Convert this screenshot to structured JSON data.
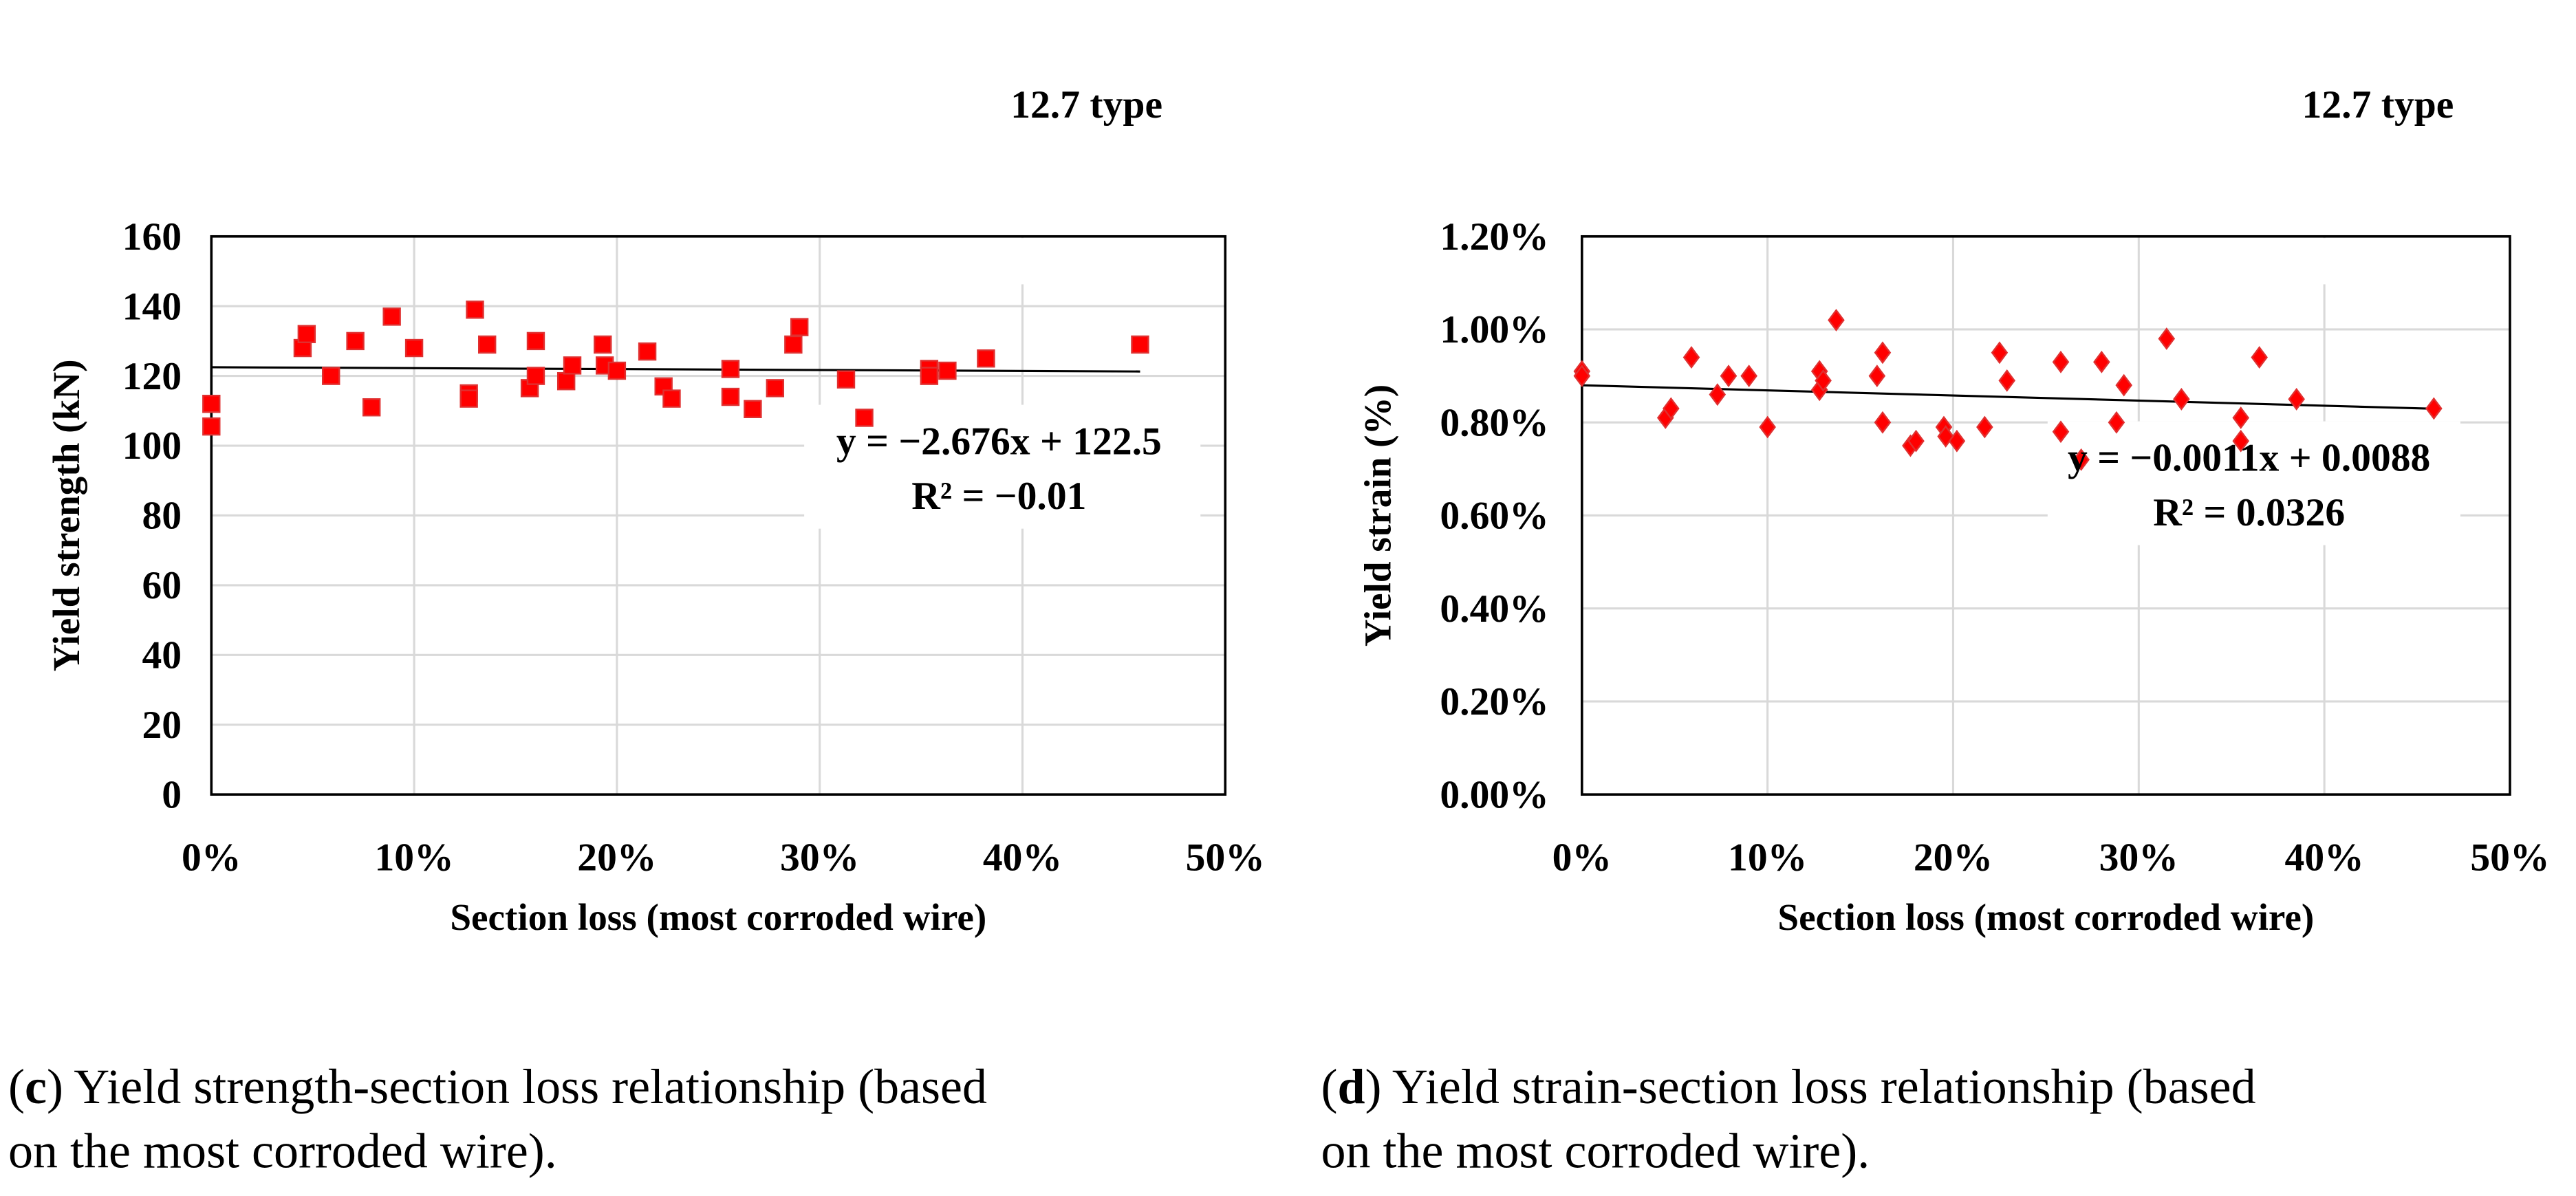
{
  "chart_data": [
    {
      "type": "scatter",
      "id": "c",
      "annotation": "12.7 type",
      "xlabel": "Section loss (most corroded wire)",
      "ylabel": "Yield strength (kN)",
      "xlim": [
        0,
        50
      ],
      "ylim": [
        0,
        160
      ],
      "xticks": [
        "0%",
        "10%",
        "20%",
        "30%",
        "40%",
        "50%"
      ],
      "yticks": [
        "0",
        "20",
        "40",
        "60",
        "80",
        "100",
        "120",
        "140",
        "160"
      ],
      "grid": true,
      "marker": "square",
      "color": "#ff0000",
      "equation": "y = −2.676x + 122.5",
      "r2": "R² = −0.01",
      "trend": {
        "slope": -2.676,
        "intercept": 122.5,
        "x_range": [
          0,
          45.8
        ]
      },
      "x_unit": "percent",
      "points": [
        [
          0,
          112
        ],
        [
          0,
          105.5
        ],
        [
          4.5,
          128
        ],
        [
          4.7,
          132
        ],
        [
          5.9,
          120
        ],
        [
          7.1,
          130
        ],
        [
          7.9,
          111
        ],
        [
          8.9,
          137
        ],
        [
          10,
          128
        ],
        [
          12.7,
          115
        ],
        [
          12.7,
          113.5
        ],
        [
          13,
          139
        ],
        [
          13.6,
          129
        ],
        [
          15.7,
          116.5
        ],
        [
          16,
          120
        ],
        [
          16,
          130
        ],
        [
          17.5,
          118.5
        ],
        [
          17.8,
          123
        ],
        [
          19.3,
          129
        ],
        [
          19.4,
          123
        ],
        [
          20,
          121.5
        ],
        [
          21.5,
          127
        ],
        [
          22.3,
          117
        ],
        [
          22.7,
          113.5
        ],
        [
          25.6,
          114
        ],
        [
          25.6,
          122
        ],
        [
          26.7,
          110.5
        ],
        [
          27.8,
          116.5
        ],
        [
          28.7,
          129
        ],
        [
          29,
          134
        ],
        [
          31.3,
          119
        ],
        [
          32.2,
          108
        ],
        [
          35.4,
          122
        ],
        [
          35.4,
          120
        ],
        [
          36.3,
          121.5
        ],
        [
          38.2,
          125
        ],
        [
          45.8,
          129
        ]
      ],
      "caption_label": "c",
      "caption_line1": ") Yield strength-section loss relationship (based",
      "caption_line2": "on the most corroded wire)."
    },
    {
      "type": "scatter",
      "id": "d",
      "annotation": "12.7 type",
      "xlabel": "Section loss (most corroded wire)",
      "ylabel": "Yield strain (%)",
      "xlim": [
        0,
        50
      ],
      "ylim": [
        0,
        1.2
      ],
      "xticks": [
        "0%",
        "10%",
        "20%",
        "30%",
        "40%",
        "50%"
      ],
      "yticks": [
        "0.00%",
        "0.20%",
        "0.40%",
        "0.60%",
        "0.80%",
        "1.00%",
        "1.20%"
      ],
      "grid": true,
      "marker": "diamond",
      "color": "#ff0000",
      "equation": "y = −0.0011x + 0.0088",
      "r2": "R² = 0.0326",
      "trend": {
        "slope": -0.11,
        "intercept": 0.88,
        "x_range": [
          0,
          45.9
        ]
      },
      "x_unit": "percent",
      "points": [
        [
          0,
          0.91
        ],
        [
          0,
          0.9
        ],
        [
          4.5,
          0.81
        ],
        [
          4.8,
          0.83
        ],
        [
          5.9,
          0.94
        ],
        [
          7.3,
          0.86
        ],
        [
          7.9,
          0.9
        ],
        [
          9,
          0.9
        ],
        [
          10,
          0.79
        ],
        [
          12.8,
          0.91
        ],
        [
          12.8,
          0.87
        ],
        [
          13,
          0.89
        ],
        [
          13.7,
          1.02
        ],
        [
          15.9,
          0.9
        ],
        [
          16.2,
          0.95
        ],
        [
          16.2,
          0.8
        ],
        [
          17.7,
          0.75
        ],
        [
          18,
          0.76
        ],
        [
          19.5,
          0.79
        ],
        [
          19.6,
          0.77
        ],
        [
          20.2,
          0.76
        ],
        [
          21.7,
          0.79
        ],
        [
          22.5,
          0.95
        ],
        [
          22.9,
          0.89
        ],
        [
          25.8,
          0.93
        ],
        [
          25.8,
          0.78
        ],
        [
          26.9,
          0.72
        ],
        [
          28,
          0.93
        ],
        [
          28.8,
          0.8
        ],
        [
          29.2,
          0.88
        ],
        [
          31.5,
          0.98
        ],
        [
          32.3,
          0.85
        ],
        [
          35.5,
          0.81
        ],
        [
          35.5,
          0.76
        ],
        [
          36.5,
          0.94
        ],
        [
          38.5,
          0.85
        ],
        [
          45.9,
          0.83
        ]
      ],
      "caption_label": "d",
      "caption_line1": ") Yield strain-section loss relationship (based",
      "caption_line2": "on the most corroded wire)."
    }
  ]
}
